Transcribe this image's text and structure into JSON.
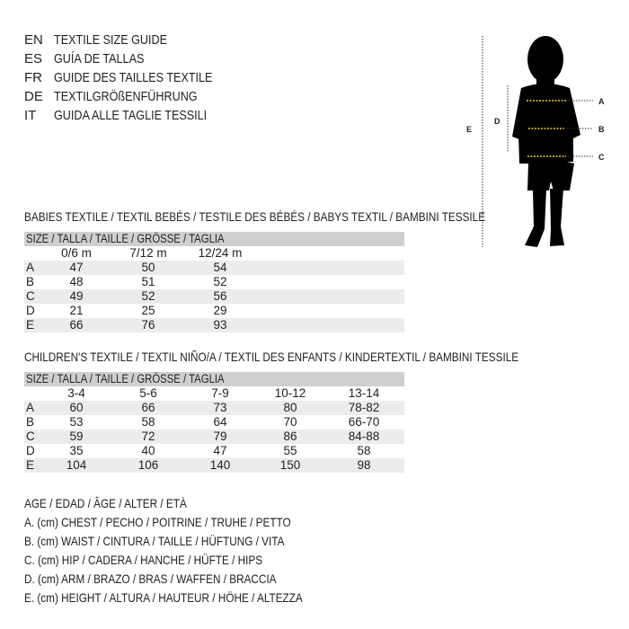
{
  "languages": [
    {
      "code": "EN",
      "text": "TEXTILE SIZE GUIDE"
    },
    {
      "code": "ES",
      "text": "GUÍA DE TALLAS"
    },
    {
      "code": "FR",
      "text": "GUIDE DES TAILLES TEXTILE"
    },
    {
      "code": "DE",
      "text": "TEXTILGRÖßENFÜHRUNG"
    },
    {
      "code": "IT",
      "text": "GUIDA ALLE TAGLIE TESSILI"
    }
  ],
  "babies": {
    "title": "BABIES TEXTILE / TEXTIL BEBÉS / TESTILE DES BÉBÉS / BABYS TEXTIL / BAMBINI TESSILE",
    "size_header": "SIZE / TALLA / TAILLE / GRÖSSE / TAGLIA",
    "columns": [
      "0/6 m",
      "7/12 m",
      "12/24 m"
    ],
    "rows": [
      {
        "label": "A",
        "values": [
          "47",
          "50",
          "54"
        ]
      },
      {
        "label": "B",
        "values": [
          "48",
          "51",
          "52"
        ]
      },
      {
        "label": "C",
        "values": [
          "49",
          "52",
          "56"
        ]
      },
      {
        "label": "D",
        "values": [
          "21",
          "25",
          "29"
        ]
      },
      {
        "label": "E",
        "values": [
          "66",
          "76",
          "93"
        ]
      }
    ]
  },
  "children": {
    "title": "CHILDREN'S TEXTILE / TEXTIL NIÑO/A / TEXTIL DES ENFANTS / KINDERTEXTIL / BAMBINI TESSILE",
    "size_header": "SIZE / TALLA / TAILLE / GRÖSSE / TAGLIA",
    "columns": [
      "3-4",
      "5-6",
      "7-9",
      "10-12",
      "13-14"
    ],
    "rows": [
      {
        "label": "A",
        "values": [
          "60",
          "66",
          "73",
          "80",
          "78-82"
        ]
      },
      {
        "label": "B",
        "values": [
          "53",
          "58",
          "64",
          "70",
          "66-70"
        ]
      },
      {
        "label": "C",
        "values": [
          "59",
          "72",
          "79",
          "86",
          "84-88"
        ]
      },
      {
        "label": "D",
        "values": [
          "35",
          "40",
          "47",
          "55",
          "58"
        ]
      },
      {
        "label": "E",
        "values": [
          "104",
          "106",
          "140",
          "150",
          "98"
        ]
      }
    ]
  },
  "legend": [
    "AGE / EDAD / ÂGE / ALTER / ETÀ",
    "A. (cm) CHEST / PECHO / POITRINE / TRUHE / PETTO",
    "B. (cm) WAIST / CINTURA / TAILLE / HÜFTUNG / VITA",
    "C. (cm) HIP / CADERA / HANCHE / HÜFTE / HIPS",
    "D. (cm) ARM / BRAZO / BRAS / WAFFEN / BRACCIA",
    "E. (cm) HEIGHT / ALTURA / HAUTEUR / HÖHE / ALTEZZA"
  ],
  "figure": {
    "labels": {
      "a": "A",
      "b": "B",
      "c": "C",
      "d": "D",
      "e": "E"
    },
    "measure_color": "#f2d21b"
  }
}
